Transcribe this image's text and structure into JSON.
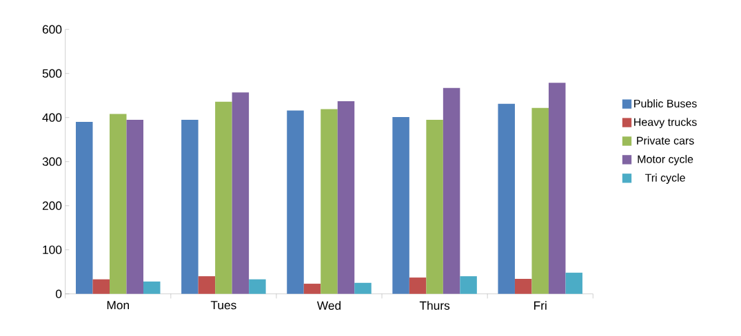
{
  "chart_data": {
    "type": "bar",
    "categories": [
      "Mon",
      "Tues",
      "Wed",
      "Thurs",
      "Fri"
    ],
    "series": [
      {
        "name": "Public Buses",
        "color": "#4f81bd",
        "values": [
          390,
          395,
          416,
          401,
          431
        ]
      },
      {
        "name": "Heavy trucks",
        "color": "#c0504d",
        "values": [
          33,
          40,
          23,
          37,
          34
        ]
      },
      {
        "name": "Private cars",
        "color": "#9bbb59",
        "values": [
          408,
          436,
          419,
          395,
          422
        ]
      },
      {
        "name": "Motor cycle",
        "color": "#8064a2",
        "values": [
          395,
          457,
          437,
          467,
          479
        ]
      },
      {
        "name": "Tri cycle",
        "color": "#4bacc6",
        "values": [
          28,
          33,
          25,
          40,
          48
        ]
      }
    ],
    "ylim": [
      0,
      600
    ],
    "yticks": [
      0,
      100,
      200,
      300,
      400,
      500,
      600
    ],
    "legend": "right"
  }
}
